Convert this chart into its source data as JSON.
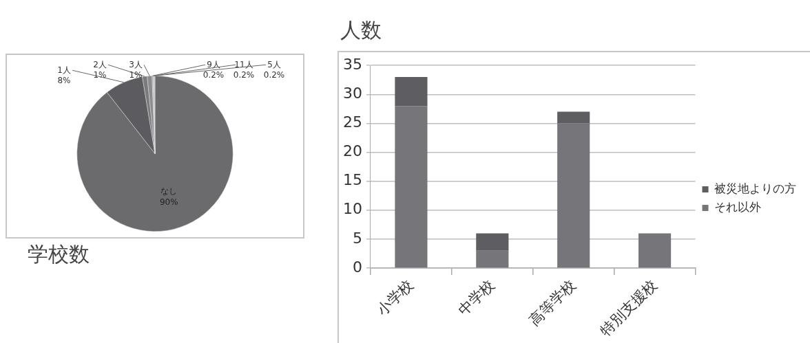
{
  "chart_data": [
    {
      "type": "pie",
      "title": "学校数",
      "categories": [
        "なし",
        "1人",
        "2人",
        "3人",
        "9人",
        "11人",
        "5人"
      ],
      "values": [
        90,
        8,
        1,
        1,
        0.2,
        0.2,
        0.2
      ],
      "value_labels": [
        "90%",
        "8%",
        "1%",
        "1%",
        "0.2%",
        "0.2%",
        "0.2%"
      ],
      "colors": [
        "#6b6b6e",
        "#5c5c60",
        "#7a7a7e",
        "#8c8c90",
        "#9c9ca0",
        "#acacb0",
        "#bcbcc0"
      ],
      "legend": false
    },
    {
      "type": "bar",
      "title": "人数",
      "stacked": true,
      "categories": [
        "小学校",
        "中学校",
        "高等学校",
        "特別支援校"
      ],
      "series": [
        {
          "name": "それ以外",
          "color": "#76767a",
          "values": [
            28,
            3,
            25,
            6
          ]
        },
        {
          "name": "被災地よりの方",
          "color": "#5e5e62",
          "values": [
            5,
            3,
            2,
            0
          ]
        }
      ],
      "ylim": [
        0,
        35
      ],
      "yticks": [
        0,
        5,
        10,
        15,
        20,
        25,
        30,
        35
      ],
      "grid": "y",
      "legend": "right"
    }
  ]
}
